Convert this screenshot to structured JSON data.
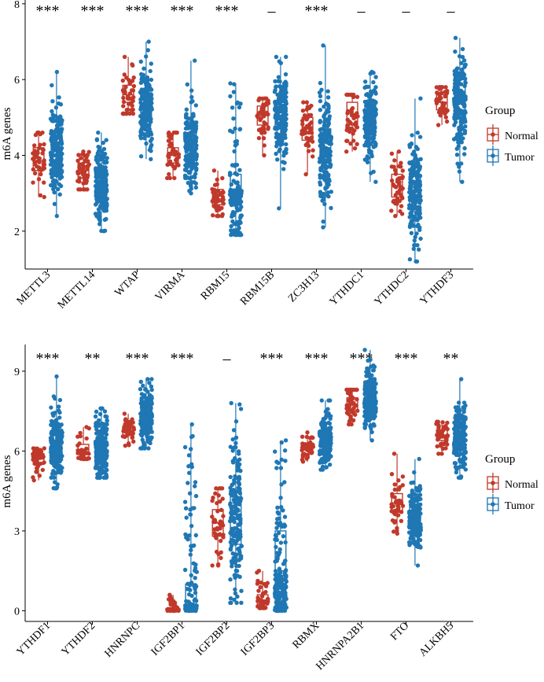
{
  "chart_data": [
    {
      "type": "box-jitter",
      "ylabel": "m6A genes",
      "ylim": [
        1.0,
        8.1
      ],
      "yticks": [
        2,
        4,
        6,
        8
      ],
      "legend": {
        "title": "Group",
        "placement": "right",
        "items": [
          "Normal",
          "Tumor"
        ]
      },
      "categories": [
        "METTL3",
        "METTL14",
        "WTAP",
        "VIRMA",
        "RBM15",
        "RBM15B",
        "ZC3H13",
        "YTHDC1",
        "YTHDC2",
        "YTHDF3"
      ],
      "significance": [
        "***",
        "***",
        "***",
        "***",
        "***",
        "–",
        "***",
        "–",
        "–",
        "–"
      ],
      "series": [
        {
          "name": "Normal",
          "color": "#c0392b",
          "boxes": [
            {
              "min": 2.9,
              "q1": 3.6,
              "median": 3.85,
              "q3": 4.2,
              "max": 4.6
            },
            {
              "min": 3.1,
              "q1": 3.4,
              "median": 3.6,
              "q3": 3.8,
              "max": 4.1
            },
            {
              "min": 5.1,
              "q1": 5.4,
              "median": 5.6,
              "q3": 5.85,
              "max": 6.6
            },
            {
              "min": 3.4,
              "q1": 3.8,
              "median": 4.0,
              "q3": 4.2,
              "max": 4.6
            },
            {
              "min": 2.4,
              "q1": 2.7,
              "median": 2.85,
              "q3": 3.1,
              "max": 3.6
            },
            {
              "min": 4.0,
              "q1": 4.8,
              "median": 5.05,
              "q3": 5.3,
              "max": 5.5
            },
            {
              "min": 3.5,
              "q1": 4.4,
              "median": 4.75,
              "q3": 5.0,
              "max": 5.4
            },
            {
              "min": 4.1,
              "q1": 4.8,
              "median": 5.1,
              "q3": 5.4,
              "max": 5.6
            },
            {
              "min": 2.4,
              "q1": 2.9,
              "median": 3.2,
              "q3": 3.5,
              "max": 4.1
            },
            {
              "min": 4.8,
              "q1": 5.2,
              "median": 5.4,
              "q3": 5.6,
              "max": 5.8
            }
          ]
        },
        {
          "name": "Tumor",
          "color": "#1f77b4",
          "boxes": [
            {
              "min": 2.4,
              "q1": 3.8,
              "median": 4.15,
              "q3": 4.6,
              "max": 6.2
            },
            {
              "min": 2.0,
              "q1": 2.9,
              "median": 3.25,
              "q3": 3.6,
              "max": 4.6
            },
            {
              "min": 3.9,
              "q1": 5.0,
              "median": 5.3,
              "q3": 5.65,
              "max": 7.0
            },
            {
              "min": 3.0,
              "q1": 3.8,
              "median": 4.2,
              "q3": 4.6,
              "max": 6.5
            },
            {
              "min": 1.9,
              "q1": 2.7,
              "median": 3.1,
              "q3": 3.5,
              "max": 5.9
            },
            {
              "min": 2.6,
              "q1": 4.7,
              "median": 5.05,
              "q3": 5.4,
              "max": 6.6
            },
            {
              "min": 2.1,
              "q1": 3.8,
              "median": 4.2,
              "q3": 4.7,
              "max": 6.9
            },
            {
              "min": 3.3,
              "q1": 4.6,
              "median": 4.95,
              "q3": 5.3,
              "max": 6.2
            },
            {
              "min": 1.2,
              "q1": 2.6,
              "median": 3.05,
              "q3": 3.5,
              "max": 5.5
            },
            {
              "min": 3.3,
              "q1": 5.0,
              "median": 5.4,
              "q3": 5.85,
              "max": 7.1
            }
          ]
        }
      ]
    },
    {
      "type": "box-jitter",
      "ylabel": "m6A genes",
      "ylim": [
        -0.4,
        10.0
      ],
      "yticks": [
        0,
        3,
        6,
        9
      ],
      "legend": {
        "title": "Group",
        "placement": "right",
        "items": [
          "Normal",
          "Tumor"
        ]
      },
      "categories": [
        "YTHDF1",
        "YTHDF2",
        "HNRNPC",
        "IGF2BP1",
        "IGF2BP2",
        "IGF2BP3",
        "RBMX",
        "HNRNPA2B1",
        "FTO",
        "ALKBH5"
      ],
      "significance": [
        "***",
        "**",
        "***",
        "***",
        "–",
        "***",
        "***",
        "***",
        "***",
        "**"
      ],
      "series": [
        {
          "name": "Normal",
          "color": "#c0392b",
          "boxes": [
            {
              "min": 4.9,
              "q1": 5.5,
              "median": 5.7,
              "q3": 5.9,
              "max": 6.1
            },
            {
              "min": 5.7,
              "q1": 5.9,
              "median": 6.05,
              "q3": 6.25,
              "max": 6.9
            },
            {
              "min": 6.2,
              "q1": 6.6,
              "median": 6.75,
              "q3": 6.95,
              "max": 7.4
            },
            {
              "min": 0.0,
              "q1": 0.02,
              "median": 0.05,
              "q3": 0.12,
              "max": 0.6
            },
            {
              "min": 1.7,
              "q1": 2.8,
              "median": 3.3,
              "q3": 3.8,
              "max": 4.6
            },
            {
              "min": 0.1,
              "q1": 0.25,
              "median": 0.4,
              "q3": 0.6,
              "max": 1.5
            },
            {
              "min": 5.6,
              "q1": 5.9,
              "median": 6.1,
              "q3": 6.3,
              "max": 6.7
            },
            {
              "min": 7.0,
              "q1": 7.5,
              "median": 7.75,
              "q3": 8.0,
              "max": 8.3
            },
            {
              "min": 2.9,
              "q1": 3.7,
              "median": 4.05,
              "q3": 4.4,
              "max": 5.9
            },
            {
              "min": 5.9,
              "q1": 6.4,
              "median": 6.6,
              "q3": 6.8,
              "max": 7.1
            }
          ]
        },
        {
          "name": "Tumor",
          "color": "#1f77b4",
          "boxes": [
            {
              "min": 4.6,
              "q1": 5.8,
              "median": 6.2,
              "q3": 6.7,
              "max": 8.8
            },
            {
              "min": 5.0,
              "q1": 5.7,
              "median": 6.1,
              "q3": 6.5,
              "max": 7.6
            },
            {
              "min": 6.1,
              "q1": 6.9,
              "median": 7.3,
              "q3": 7.7,
              "max": 8.7
            },
            {
              "min": 0.0,
              "q1": 0.05,
              "median": 0.2,
              "q3": 1.0,
              "max": 7.0
            },
            {
              "min": 0.3,
              "q1": 2.5,
              "median": 3.5,
              "q3": 4.5,
              "max": 7.8
            },
            {
              "min": 0.0,
              "q1": 0.3,
              "median": 1.5,
              "q3": 3.0,
              "max": 6.4
            },
            {
              "min": 5.3,
              "q1": 6.0,
              "median": 6.35,
              "q3": 6.7,
              "max": 7.9
            },
            {
              "min": 6.4,
              "q1": 7.6,
              "median": 8.0,
              "q3": 8.4,
              "max": 9.8
            },
            {
              "min": 1.7,
              "q1": 3.1,
              "median": 3.5,
              "q3": 3.9,
              "max": 5.7
            },
            {
              "min": 5.0,
              "q1": 6.1,
              "median": 6.5,
              "q3": 6.9,
              "max": 8.7
            }
          ]
        }
      ]
    }
  ]
}
